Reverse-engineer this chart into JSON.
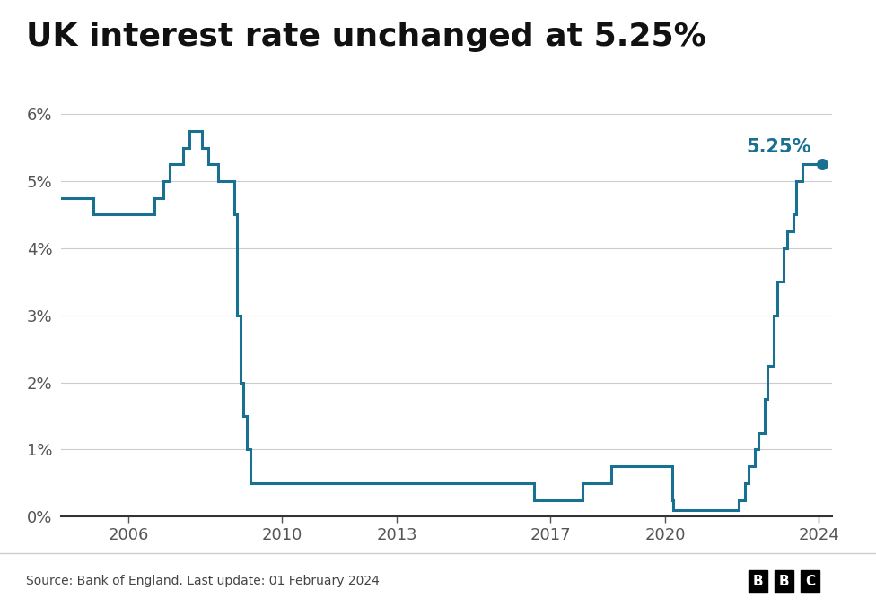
{
  "title": "UK interest rate unchanged at 5.25%",
  "source_text": "Source: Bank of England. Last update: 01 February 2024",
  "line_color": "#1a7090",
  "background_color": "#ffffff",
  "annotation_text": "5.25%",
  "annotation_color": "#1a7090",
  "ylim": [
    0,
    6.6
  ],
  "yticks": [
    0,
    1,
    2,
    3,
    4,
    5,
    6
  ],
  "ytick_labels": [
    "0%",
    "1%",
    "2%",
    "3%",
    "4%",
    "5%",
    "6%"
  ],
  "xtick_positions": [
    2006,
    2010,
    2013,
    2017,
    2020,
    2024
  ],
  "xtick_labels": [
    "2006",
    "2010",
    "2013",
    "2017",
    "2020",
    "2024"
  ],
  "xlim_start": 2004.25,
  "xlim_end": 2024.35,
  "title_fontsize": 26,
  "tick_fontsize": 13,
  "annotation_fontsize": 15,
  "line_width": 2.2,
  "dot_size": 70,
  "dates": [
    2004.25,
    2004.92,
    2005.08,
    2005.58,
    2006.67,
    2006.92,
    2007.08,
    2007.42,
    2007.58,
    2007.92,
    2008.08,
    2008.33,
    2008.75,
    2008.83,
    2008.92,
    2009.0,
    2009.08,
    2009.17,
    2016.58,
    2017.83,
    2018.58,
    2020.17,
    2020.21,
    2021.92,
    2022.08,
    2022.17,
    2022.33,
    2022.42,
    2022.58,
    2022.67,
    2022.83,
    2022.92,
    2023.08,
    2023.17,
    2023.33,
    2023.42,
    2023.58,
    2024.08
  ],
  "rates": [
    4.75,
    4.75,
    4.5,
    4.5,
    4.75,
    5.0,
    5.25,
    5.5,
    5.75,
    5.5,
    5.25,
    5.0,
    4.5,
    3.0,
    2.0,
    1.5,
    1.0,
    0.5,
    0.25,
    0.5,
    0.75,
    0.25,
    0.1,
    0.25,
    0.5,
    0.75,
    1.0,
    1.25,
    1.75,
    2.25,
    3.0,
    3.5,
    4.0,
    4.25,
    4.5,
    5.0,
    5.25,
    5.25
  ],
  "grid_color": "#cccccc",
  "spine_color": "#333333",
  "tick_color": "#555555",
  "separator_color": "#cccccc"
}
